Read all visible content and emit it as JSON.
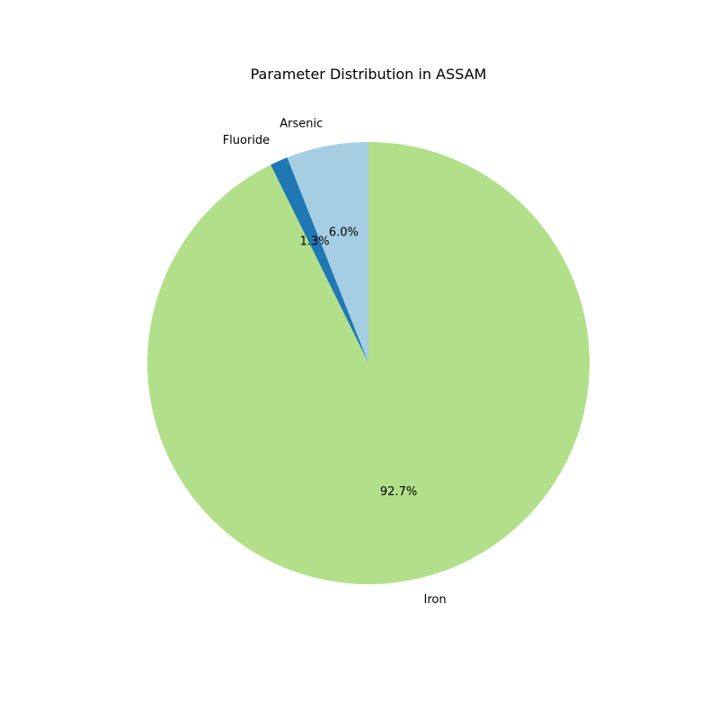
{
  "chart_data": {
    "type": "pie",
    "title": "Parameter Distribution in ASSAM",
    "start_angle_deg": 90,
    "direction": "counterclockwise",
    "slices": [
      {
        "label": "Arsenic",
        "value": 6.0,
        "pct_label": "6.0%",
        "color": "#a6cee3"
      },
      {
        "label": "Fluoride",
        "value": 1.3,
        "pct_label": "1.3%",
        "color": "#1f78b4"
      },
      {
        "label": "Iron",
        "value": 92.7,
        "pct_label": "92.7%",
        "color": "#b2df8a"
      }
    ]
  }
}
